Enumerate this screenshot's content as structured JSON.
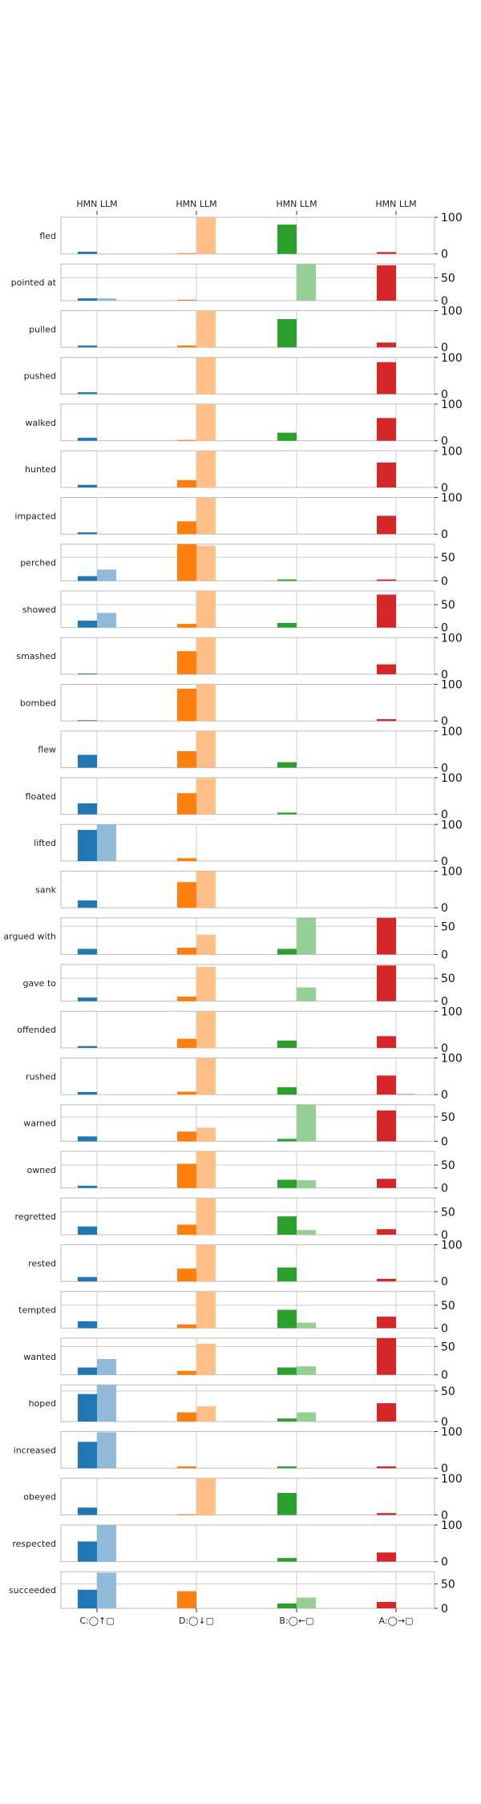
{
  "chart_data": {
    "type": "bar",
    "layout": "small-multiples",
    "top_labels": [
      "HMN LLM",
      "HMN LLM",
      "HMN LLM",
      "HMN LLM"
    ],
    "groups": [
      "C:◯↑▢",
      "D:◯↓▢",
      "B:◯←▢",
      "A:◯→▢"
    ],
    "series": [
      {
        "name": "HMN"
      },
      {
        "name": "LLM"
      }
    ],
    "colors": {
      "C": [
        "#1f77b4",
        "#8fbbd9"
      ],
      "D": [
        "#ff7f0e",
        "#ffbf86"
      ],
      "B": [
        "#2ca02c",
        "#95cf95"
      ],
      "A": [
        "#d62728",
        "#ea9293"
      ]
    },
    "rows": [
      {
        "label": "fled",
        "ylim": [
          0,
          100
        ],
        "yticks": [
          0,
          100
        ],
        "values": [
          [
            6,
            0
          ],
          [
            2,
            100
          ],
          [
            80,
            0
          ],
          [
            5,
            0
          ]
        ]
      },
      {
        "label": "pointed at",
        "ylim": [
          0,
          80
        ],
        "yticks": [
          0,
          50
        ],
        "values": [
          [
            5,
            5
          ],
          [
            2,
            0
          ],
          [
            0,
            80
          ],
          [
            77,
            0
          ]
        ]
      },
      {
        "label": "pulled",
        "ylim": [
          0,
          100
        ],
        "yticks": [
          0,
          100
        ],
        "values": [
          [
            5,
            0
          ],
          [
            5,
            100
          ],
          [
            77,
            0
          ],
          [
            13,
            0
          ]
        ]
      },
      {
        "label": "pushed",
        "ylim": [
          0,
          100
        ],
        "yticks": [
          0,
          100
        ],
        "values": [
          [
            5,
            0
          ],
          [
            0,
            100
          ],
          [
            0,
            0
          ],
          [
            87,
            0
          ]
        ]
      },
      {
        "label": "walked",
        "ylim": [
          0,
          100
        ],
        "yticks": [
          0,
          100
        ],
        "values": [
          [
            8,
            0
          ],
          [
            2,
            100
          ],
          [
            22,
            0
          ],
          [
            62,
            0
          ]
        ]
      },
      {
        "label": "hunted",
        "ylim": [
          0,
          100
        ],
        "yticks": [
          0,
          100
        ],
        "values": [
          [
            7,
            0
          ],
          [
            20,
            100
          ],
          [
            0,
            0
          ],
          [
            68,
            0
          ]
        ]
      },
      {
        "label": "impacted",
        "ylim": [
          0,
          100
        ],
        "yticks": [
          0,
          100
        ],
        "values": [
          [
            5,
            0
          ],
          [
            35,
            100
          ],
          [
            0,
            0
          ],
          [
            50,
            0
          ]
        ]
      },
      {
        "label": "perched",
        "ylim": [
          0,
          78
        ],
        "yticks": [
          0,
          50
        ],
        "values": [
          [
            10,
            24
          ],
          [
            78,
            75
          ],
          [
            3,
            0
          ],
          [
            3,
            0
          ]
        ]
      },
      {
        "label": "showed",
        "ylim": [
          0,
          80
        ],
        "yticks": [
          0,
          50
        ],
        "values": [
          [
            15,
            32
          ],
          [
            8,
            80
          ],
          [
            10,
            0
          ],
          [
            72,
            0
          ]
        ]
      },
      {
        "label": "smashed",
        "ylim": [
          0,
          100
        ],
        "yticks": [
          0,
          100
        ],
        "values": [
          [
            2,
            0
          ],
          [
            63,
            100
          ],
          [
            0,
            0
          ],
          [
            27,
            0
          ]
        ]
      },
      {
        "label": "bombed",
        "ylim": [
          0,
          100
        ],
        "yticks": [
          0,
          100
        ],
        "values": [
          [
            2,
            0
          ],
          [
            88,
            100
          ],
          [
            0,
            0
          ],
          [
            5,
            0
          ]
        ]
      },
      {
        "label": "flew",
        "ylim": [
          0,
          100
        ],
        "yticks": [
          0,
          100
        ],
        "values": [
          [
            35,
            0
          ],
          [
            45,
            100
          ],
          [
            15,
            0
          ],
          [
            0,
            0
          ]
        ]
      },
      {
        "label": "floated",
        "ylim": [
          0,
          100
        ],
        "yticks": [
          0,
          100
        ],
        "values": [
          [
            30,
            0
          ],
          [
            58,
            100
          ],
          [
            5,
            0
          ],
          [
            0,
            0
          ]
        ]
      },
      {
        "label": "lifted",
        "ylim": [
          0,
          100
        ],
        "yticks": [
          0,
          100
        ],
        "values": [
          [
            85,
            100
          ],
          [
            8,
            0
          ],
          [
            0,
            0
          ],
          [
            0,
            0
          ]
        ]
      },
      {
        "label": "sank",
        "ylim": [
          0,
          100
        ],
        "yticks": [
          0,
          100
        ],
        "values": [
          [
            20,
            0
          ],
          [
            70,
            100
          ],
          [
            0,
            0
          ],
          [
            0,
            0
          ]
        ]
      },
      {
        "label": "argued with",
        "ylim": [
          0,
          65
        ],
        "yticks": [
          0,
          50
        ],
        "values": [
          [
            10,
            0
          ],
          [
            12,
            35
          ],
          [
            10,
            65
          ],
          [
            65,
            0
          ]
        ]
      },
      {
        "label": "gave to",
        "ylim": [
          0,
          80
        ],
        "yticks": [
          0,
          50
        ],
        "values": [
          [
            8,
            0
          ],
          [
            10,
            75
          ],
          [
            0,
            30
          ],
          [
            78,
            0
          ]
        ]
      },
      {
        "label": "offended",
        "ylim": [
          0,
          100
        ],
        "yticks": [
          0,
          100
        ],
        "values": [
          [
            5,
            0
          ],
          [
            25,
            100
          ],
          [
            20,
            0
          ],
          [
            32,
            0
          ]
        ]
      },
      {
        "label": "rushed",
        "ylim": [
          0,
          100
        ],
        "yticks": [
          0,
          100
        ],
        "values": [
          [
            7,
            0
          ],
          [
            8,
            100
          ],
          [
            20,
            0
          ],
          [
            52,
            2
          ]
        ]
      },
      {
        "label": "warned",
        "ylim": [
          0,
          75
        ],
        "yticks": [
          0,
          50
        ],
        "values": [
          [
            10,
            0
          ],
          [
            20,
            28
          ],
          [
            5,
            75
          ],
          [
            63,
            0
          ]
        ]
      },
      {
        "label": "owned",
        "ylim": [
          0,
          80
        ],
        "yticks": [
          0,
          50
        ],
        "values": [
          [
            5,
            0
          ],
          [
            53,
            80
          ],
          [
            18,
            17
          ],
          [
            20,
            0
          ]
        ]
      },
      {
        "label": "regretted",
        "ylim": [
          0,
          80
        ],
        "yticks": [
          0,
          50
        ],
        "values": [
          [
            18,
            0
          ],
          [
            22,
            80
          ],
          [
            40,
            10
          ],
          [
            12,
            0
          ]
        ]
      },
      {
        "label": "rested",
        "ylim": [
          0,
          100
        ],
        "yticks": [
          0,
          100
        ],
        "values": [
          [
            12,
            0
          ],
          [
            35,
            100
          ],
          [
            38,
            0
          ],
          [
            7,
            0
          ]
        ]
      },
      {
        "label": "tempted",
        "ylim": [
          0,
          80
        ],
        "yticks": [
          0,
          50
        ],
        "values": [
          [
            15,
            0
          ],
          [
            8,
            80
          ],
          [
            40,
            12
          ],
          [
            25,
            0
          ]
        ]
      },
      {
        "label": "wanted",
        "ylim": [
          0,
          65
        ],
        "yticks": [
          0,
          50
        ],
        "values": [
          [
            13,
            28
          ],
          [
            7,
            55
          ],
          [
            13,
            15
          ],
          [
            65,
            0
          ]
        ]
      },
      {
        "label": "hoped",
        "ylim": [
          0,
          60
        ],
        "yticks": [
          0,
          50
        ],
        "values": [
          [
            45,
            60
          ],
          [
            15,
            25
          ],
          [
            5,
            15
          ],
          [
            30,
            0
          ]
        ]
      },
      {
        "label": "increased",
        "ylim": [
          0,
          100
        ],
        "yticks": [
          0,
          100
        ],
        "values": [
          [
            72,
            98
          ],
          [
            5,
            0
          ],
          [
            5,
            0
          ],
          [
            5,
            0
          ]
        ]
      },
      {
        "label": "obeyed",
        "ylim": [
          0,
          100
        ],
        "yticks": [
          0,
          100
        ],
        "values": [
          [
            20,
            0
          ],
          [
            2,
            100
          ],
          [
            60,
            0
          ],
          [
            5,
            0
          ]
        ]
      },
      {
        "label": "respected",
        "ylim": [
          0,
          100
        ],
        "yticks": [
          0,
          100
        ],
        "values": [
          [
            55,
            100
          ],
          [
            0,
            0
          ],
          [
            10,
            0
          ],
          [
            25,
            0
          ]
        ]
      },
      {
        "label": "succeeded",
        "ylim": [
          0,
          75
        ],
        "yticks": [
          0,
          50
        ],
        "values": [
          [
            38,
            73
          ],
          [
            35,
            0
          ],
          [
            10,
            22
          ],
          [
            13,
            0
          ]
        ]
      }
    ]
  }
}
